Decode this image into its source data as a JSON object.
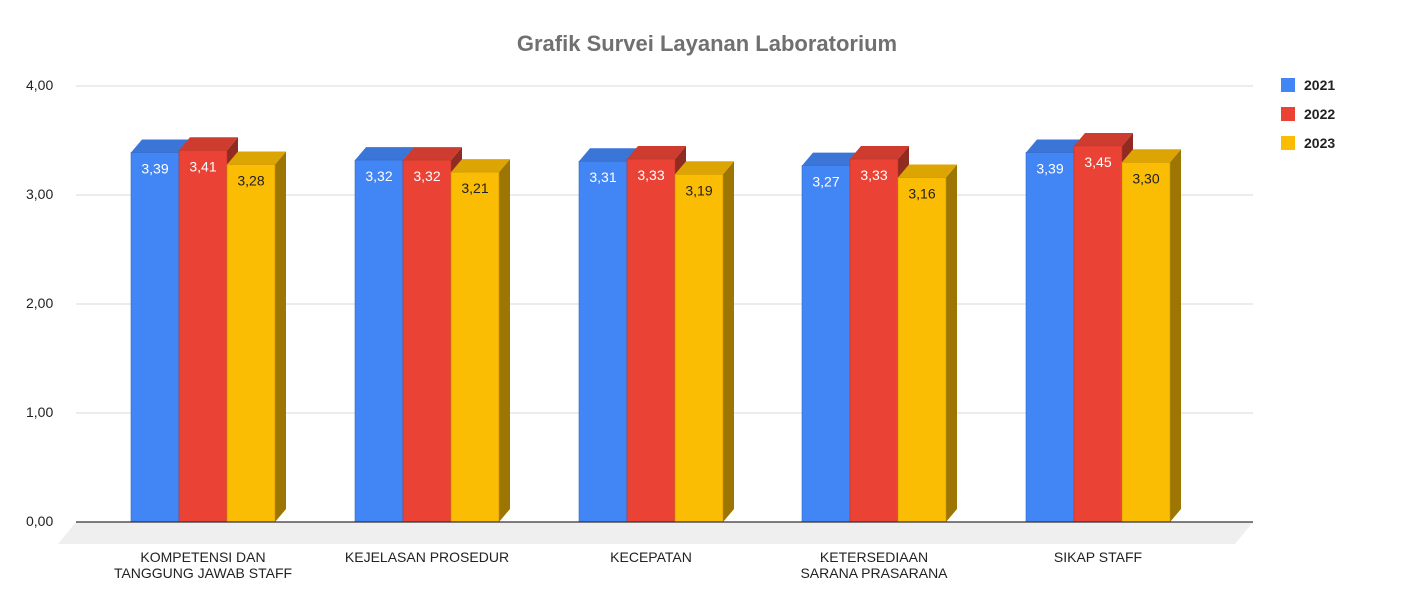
{
  "chart_data": {
    "type": "bar",
    "title": "Grafik Survei Layanan Laboratorium",
    "categories": [
      [
        "KOMPETENSI DAN",
        "TANGGUNG JAWAB STAFF"
      ],
      [
        "KEJELASAN PROSEDUR"
      ],
      [
        "KECEPATAN"
      ],
      [
        "KETERSEDIAAN",
        "SARANA PRASARANA"
      ],
      [
        "SIKAP STAFF"
      ]
    ],
    "series": [
      {
        "name": "2021",
        "color": "#4285F4",
        "values": [
          3.39,
          3.32,
          3.31,
          3.27,
          3.39
        ],
        "labels": [
          "3,39",
          "3,32",
          "3,31",
          "3,27",
          "3,39"
        ]
      },
      {
        "name": "2022",
        "color": "#EA4335",
        "values": [
          3.41,
          3.32,
          3.33,
          3.33,
          3.45
        ],
        "labels": [
          "3,41",
          "3,32",
          "3,33",
          "3,33",
          "3,45"
        ]
      },
      {
        "name": "2023",
        "color": "#FBBC04",
        "values": [
          3.28,
          3.21,
          3.19,
          3.16,
          3.3
        ],
        "labels": [
          "3,28",
          "3,21",
          "3,19",
          "3,16",
          "3,30"
        ]
      }
    ],
    "yticks": [
      0,
      1,
      2,
      3,
      4
    ],
    "ytick_labels": [
      "0,00",
      "1,00",
      "2,00",
      "3,00",
      "4,00"
    ],
    "ylim": [
      0,
      4
    ],
    "grid": true,
    "legend": "right"
  }
}
